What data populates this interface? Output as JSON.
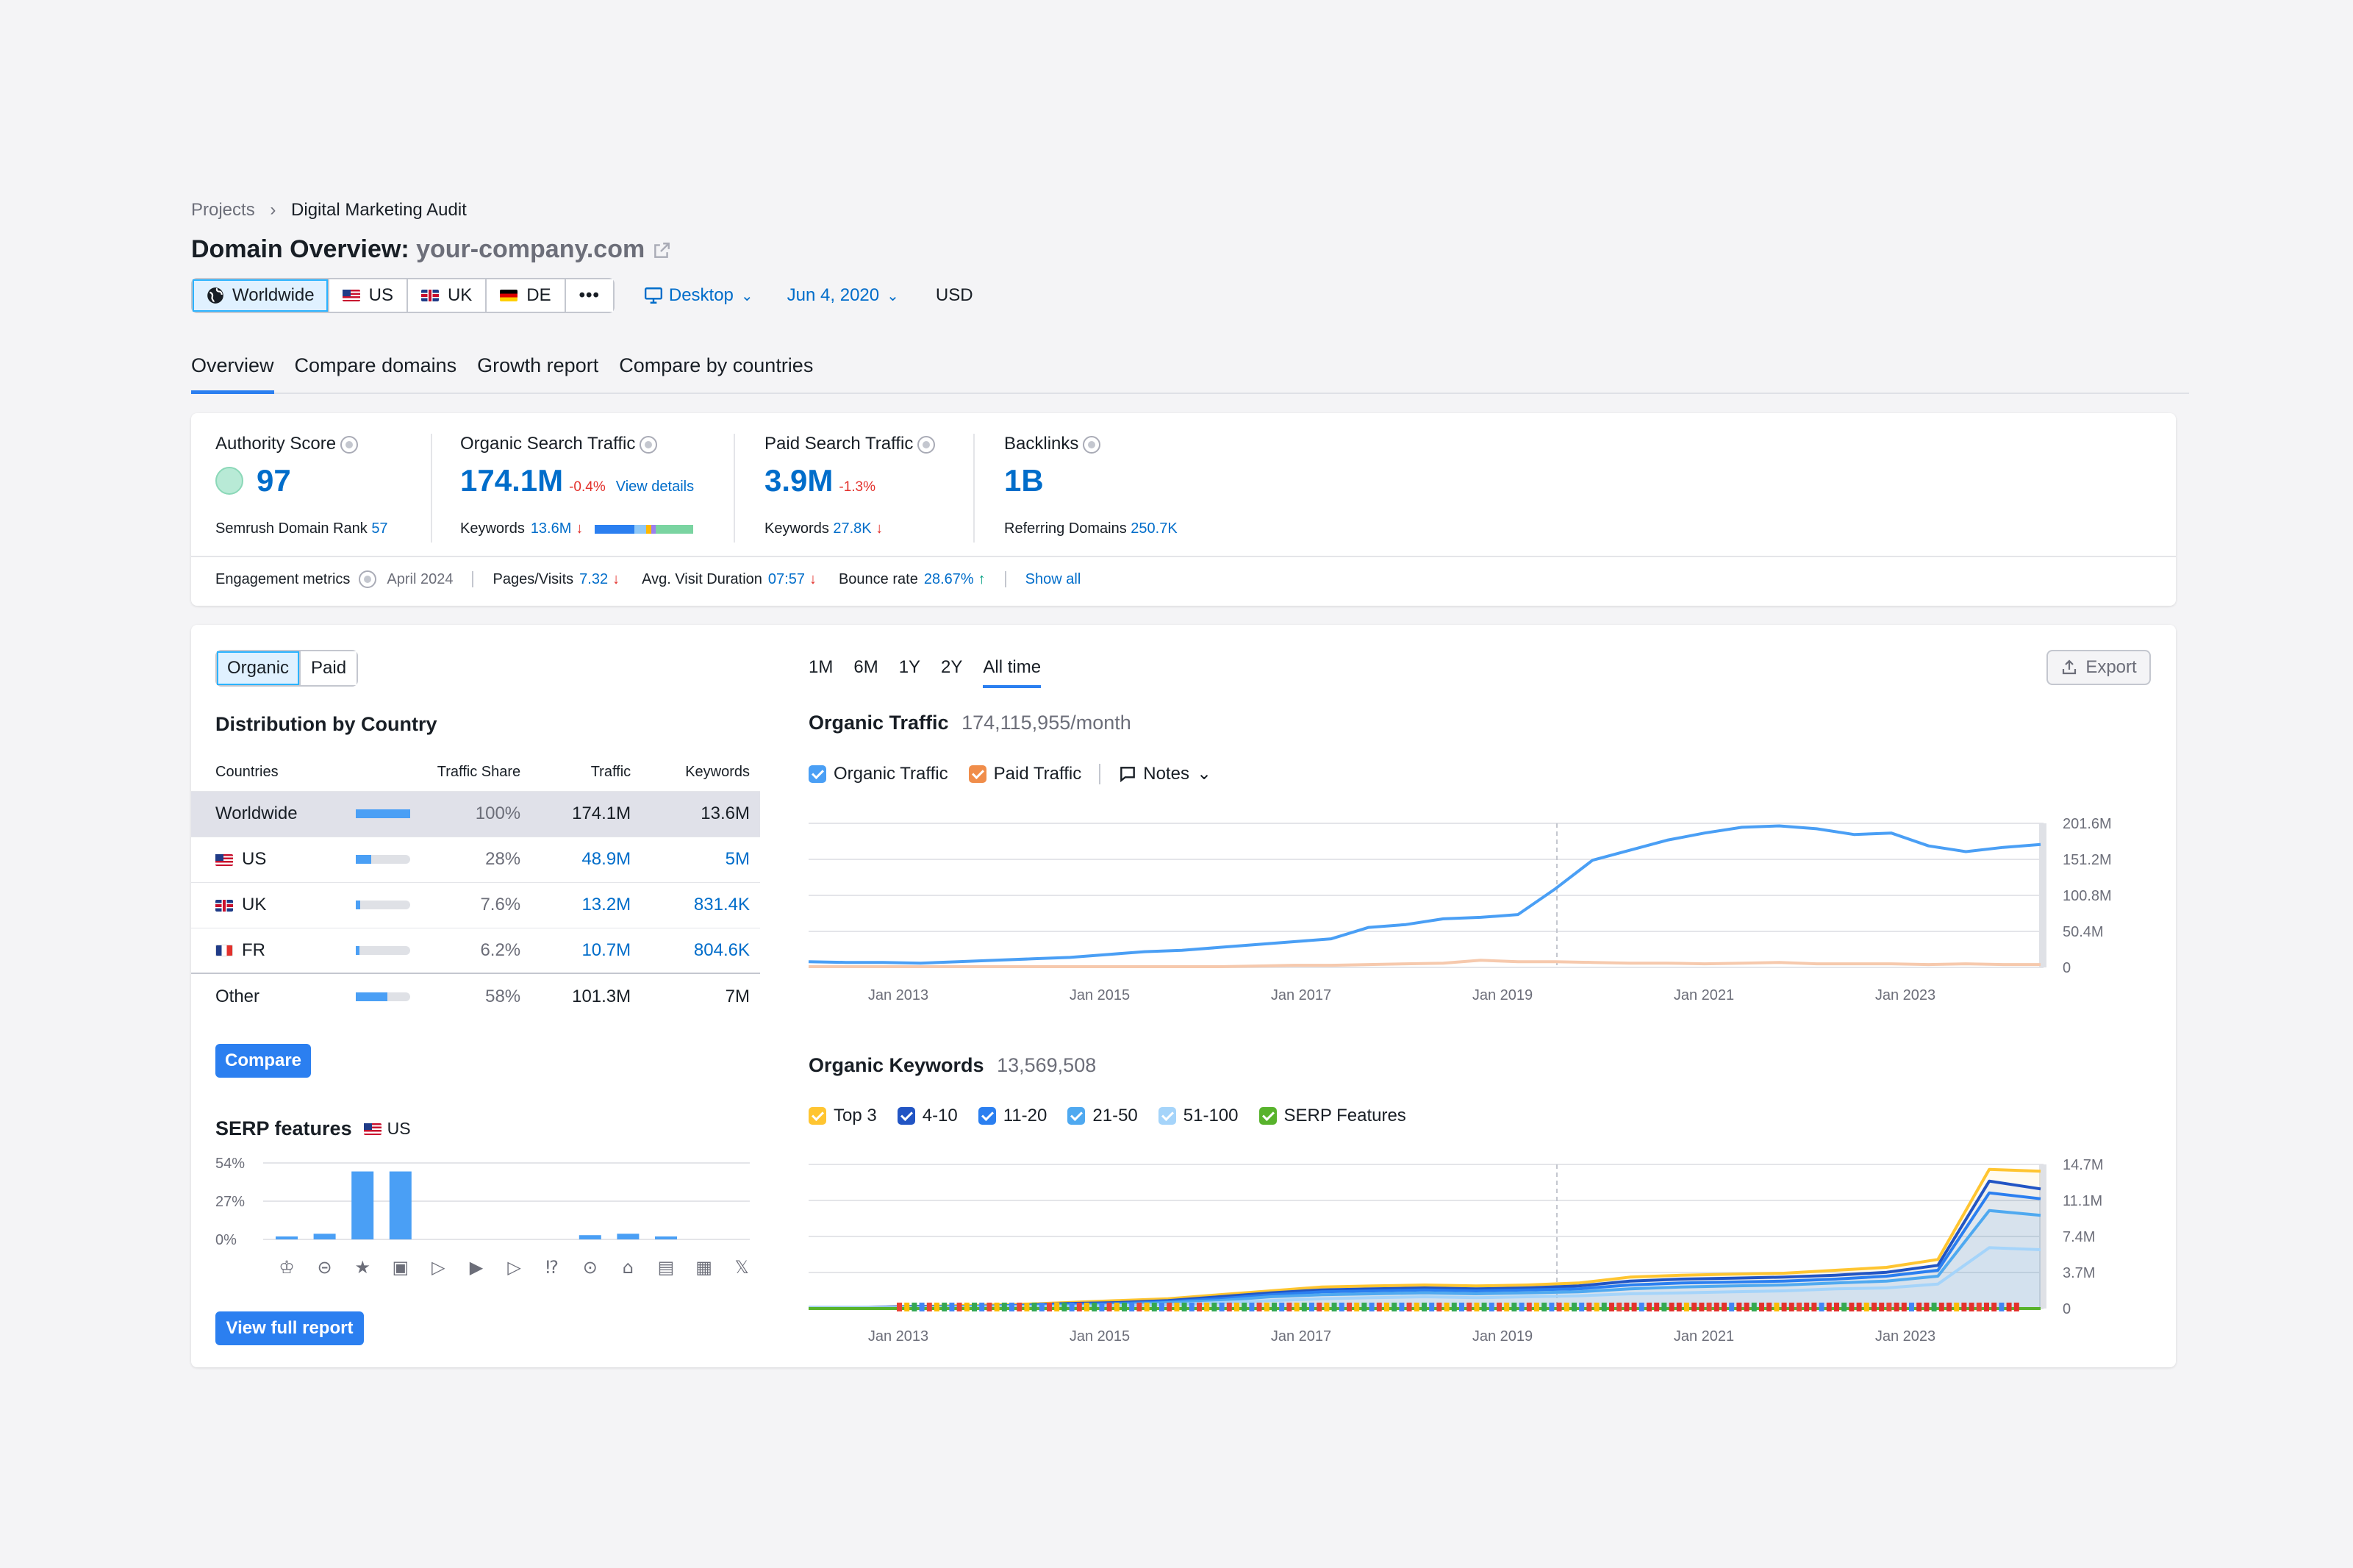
{
  "breadcrumb": {
    "root": "Projects",
    "current": "Digital Marketing Audit"
  },
  "header": {
    "title": "Domain Overview:",
    "domain": "your-company.com"
  },
  "filters": {
    "regions": [
      {
        "label": "Worldwide",
        "icon": "globe-icon",
        "active": true
      },
      {
        "label": "US",
        "flag": "us"
      },
      {
        "label": "UK",
        "flag": "uk"
      },
      {
        "label": "DE",
        "flag": "de"
      }
    ],
    "more": "•••",
    "device": "Desktop",
    "date": "Jun 4, 2020",
    "currency": "USD"
  },
  "tabs": [
    "Overview",
    "Compare domains",
    "Growth report",
    "Compare by countries"
  ],
  "metrics": {
    "authority": {
      "label": "Authority Score",
      "value": "97",
      "sub_label": "Semrush Domain Rank",
      "sub_value": "57"
    },
    "organic": {
      "label": "Organic Search Traffic",
      "value": "174.1M",
      "change": "-0.4%",
      "link": "View details",
      "sub_label": "Keywords",
      "sub_value": "13.6M"
    },
    "paid": {
      "label": "Paid Search Traffic",
      "value": "3.9M",
      "change": "-1.3%",
      "sub_label": "Keywords",
      "sub_value": "27.8K"
    },
    "backlinks": {
      "label": "Backlinks",
      "value": "1B",
      "sub_label": "Referring Domains",
      "sub_value": "250.7K"
    }
  },
  "engagement": {
    "label": "Engagement metrics",
    "date": "April 2024",
    "pages_label": "Pages/Visits",
    "pages_value": "7.32",
    "duration_label": "Avg. Visit Duration",
    "duration_value": "07:57",
    "bounce_label": "Bounce rate",
    "bounce_value": "28.67%",
    "show_all": "Show all"
  },
  "distribution": {
    "toggle": [
      "Organic",
      "Paid"
    ],
    "title": "Distribution by Country",
    "columns": [
      "Countries",
      "Traffic Share",
      "Traffic",
      "Keywords"
    ],
    "rows": [
      {
        "country": "Worldwide",
        "share": "100%",
        "share_value": 1.0,
        "traffic": "174.1M",
        "keywords": "13.6M"
      },
      {
        "country": "US",
        "flag": "us",
        "share": "28%",
        "share_value": 0.28,
        "traffic": "48.9M",
        "keywords": "5M"
      },
      {
        "country": "UK",
        "flag": "uk",
        "share": "7.6%",
        "share_value": 0.076,
        "traffic": "13.2M",
        "keywords": "831.4K"
      },
      {
        "country": "FR",
        "flag": "fr",
        "share": "6.2%",
        "share_value": 0.062,
        "traffic": "10.7M",
        "keywords": "804.6K"
      },
      {
        "country": "Other",
        "share": "58%",
        "share_value": 0.58,
        "traffic": "101.3M",
        "keywords": "7M"
      }
    ],
    "compare_button": "Compare"
  },
  "serp": {
    "title": "SERP features",
    "country": "US",
    "view_full_report": "View full report",
    "icons": [
      "crown-icon",
      "link-icon",
      "star-icon",
      "image-icon",
      "video-icon",
      "video-carousel-icon",
      "video-play-icon",
      "faq-icon",
      "location-pin-icon",
      "graduation-cap-icon",
      "document-icon",
      "briefcase-icon",
      "x-twitter-icon"
    ],
    "chart_data": {
      "type": "bar",
      "ylim": [
        0,
        54
      ],
      "ytick_labels": [
        "54%",
        "27%",
        "0%"
      ],
      "values": [
        1,
        4,
        48,
        48,
        0,
        0,
        0,
        0,
        3,
        4,
        2,
        0,
        0
      ]
    }
  },
  "timerange": {
    "options": [
      "1M",
      "6M",
      "1Y",
      "2Y",
      "All time"
    ],
    "active": "All time"
  },
  "export_label": "Export",
  "organic_traffic_chart": {
    "title": "Organic Traffic",
    "value": "174,115,955/month",
    "legend": [
      {
        "label": "Organic Traffic",
        "color": "#4a9ff5"
      },
      {
        "label": "Paid Traffic",
        "color": "#f08d4a"
      }
    ],
    "notes_label": "Notes",
    "chart_data": {
      "type": "line",
      "x_ticks": [
        "Jan 2013",
        "Jan 2015",
        "Jan 2017",
        "Jan 2019",
        "Jan 2021",
        "Jan 2023"
      ],
      "y_ticks": [
        "201.6M",
        "151.2M",
        "100.8M",
        "50.4M",
        "0"
      ],
      "ylim": [
        0,
        201.6
      ],
      "series": [
        {
          "name": "Organic Traffic",
          "values": [
            8,
            7,
            7,
            6,
            8,
            10,
            12,
            14,
            18,
            22,
            24,
            28,
            32,
            36,
            40,
            56,
            60,
            68,
            70,
            74,
            110,
            150,
            164,
            178,
            188,
            196,
            198,
            194,
            186,
            188,
            170,
            162,
            168,
            172
          ]
        },
        {
          "name": "Paid Traffic",
          "values": [
            1,
            1,
            1,
            1,
            1,
            1,
            1,
            1,
            1,
            1,
            1,
            1,
            2,
            3,
            3,
            4,
            5,
            6,
            10,
            8,
            8,
            7,
            6,
            6,
            5,
            6,
            7,
            5,
            5,
            5,
            4,
            5,
            4,
            4
          ]
        }
      ]
    }
  },
  "organic_keywords_chart": {
    "title": "Organic Keywords",
    "value": "13,569,508",
    "legend": [
      {
        "label": "Top 3",
        "color": "#ffc531"
      },
      {
        "label": "4-10",
        "color": "#2255c4"
      },
      {
        "label": "11-20",
        "color": "#2b7ff0"
      },
      {
        "label": "21-50",
        "color": "#4fa9f0"
      },
      {
        "label": "51-100",
        "color": "#a5d4fa"
      },
      {
        "label": "SERP Features",
        "color": "#58b32c"
      }
    ],
    "chart_data": {
      "type": "area",
      "x_ticks": [
        "Jan 2013",
        "Jan 2015",
        "Jan 2017",
        "Jan 2019",
        "Jan 2021",
        "Jan 2023"
      ],
      "y_ticks": [
        "14.7M",
        "11.1M",
        "7.4M",
        "3.7M",
        "0"
      ],
      "ylim": [
        0,
        14.7
      ],
      "series": [
        {
          "name": "Top 3",
          "values": [
            0.1,
            0.1,
            0.2,
            0.3,
            0.4,
            0.6,
            0.8,
            1.0,
            1.4,
            1.8,
            2.2,
            2.3,
            2.4,
            2.3,
            2.4,
            2.6,
            3.2,
            3.4,
            3.5,
            3.6,
            3.9,
            4.2,
            5.0,
            14.2,
            14.0
          ]
        },
        {
          "name": "4-10",
          "values": [
            0.1,
            0.1,
            0.2,
            0.2,
            0.3,
            0.5,
            0.6,
            0.8,
            1.2,
            1.6,
            1.9,
            2.0,
            2.1,
            2.0,
            2.1,
            2.3,
            2.8,
            3.0,
            3.1,
            3.2,
            3.4,
            3.7,
            4.4,
            13.0,
            12.2
          ]
        },
        {
          "name": "11-20",
          "values": [
            0.1,
            0.1,
            0.1,
            0.2,
            0.3,
            0.4,
            0.5,
            0.7,
            1.0,
            1.4,
            1.7,
            1.8,
            1.9,
            1.8,
            1.9,
            2.0,
            2.4,
            2.6,
            2.7,
            2.8,
            3.0,
            3.3,
            3.9,
            11.8,
            11.2
          ]
        },
        {
          "name": "21-50",
          "values": [
            0.1,
            0.1,
            0.1,
            0.2,
            0.2,
            0.3,
            0.4,
            0.6,
            0.8,
            1.2,
            1.4,
            1.5,
            1.6,
            1.5,
            1.6,
            1.7,
            2.0,
            2.2,
            2.3,
            2.4,
            2.6,
            2.8,
            3.3,
            10.0,
            9.5
          ]
        },
        {
          "name": "51-100",
          "values": [
            0.1,
            0.1,
            0.1,
            0.1,
            0.2,
            0.2,
            0.3,
            0.4,
            0.6,
            0.8,
            1.0,
            1.1,
            1.2,
            1.1,
            1.2,
            1.3,
            1.5,
            1.6,
            1.7,
            1.8,
            2.0,
            2.1,
            2.5,
            6.2,
            6.0
          ]
        },
        {
          "name": "SERP Features",
          "values": [
            0,
            0,
            0,
            0,
            0,
            0,
            0,
            0,
            0,
            0,
            0,
            0,
            0,
            0,
            0,
            0,
            0,
            0,
            0,
            0,
            0,
            0,
            0,
            0,
            0
          ]
        }
      ]
    }
  }
}
